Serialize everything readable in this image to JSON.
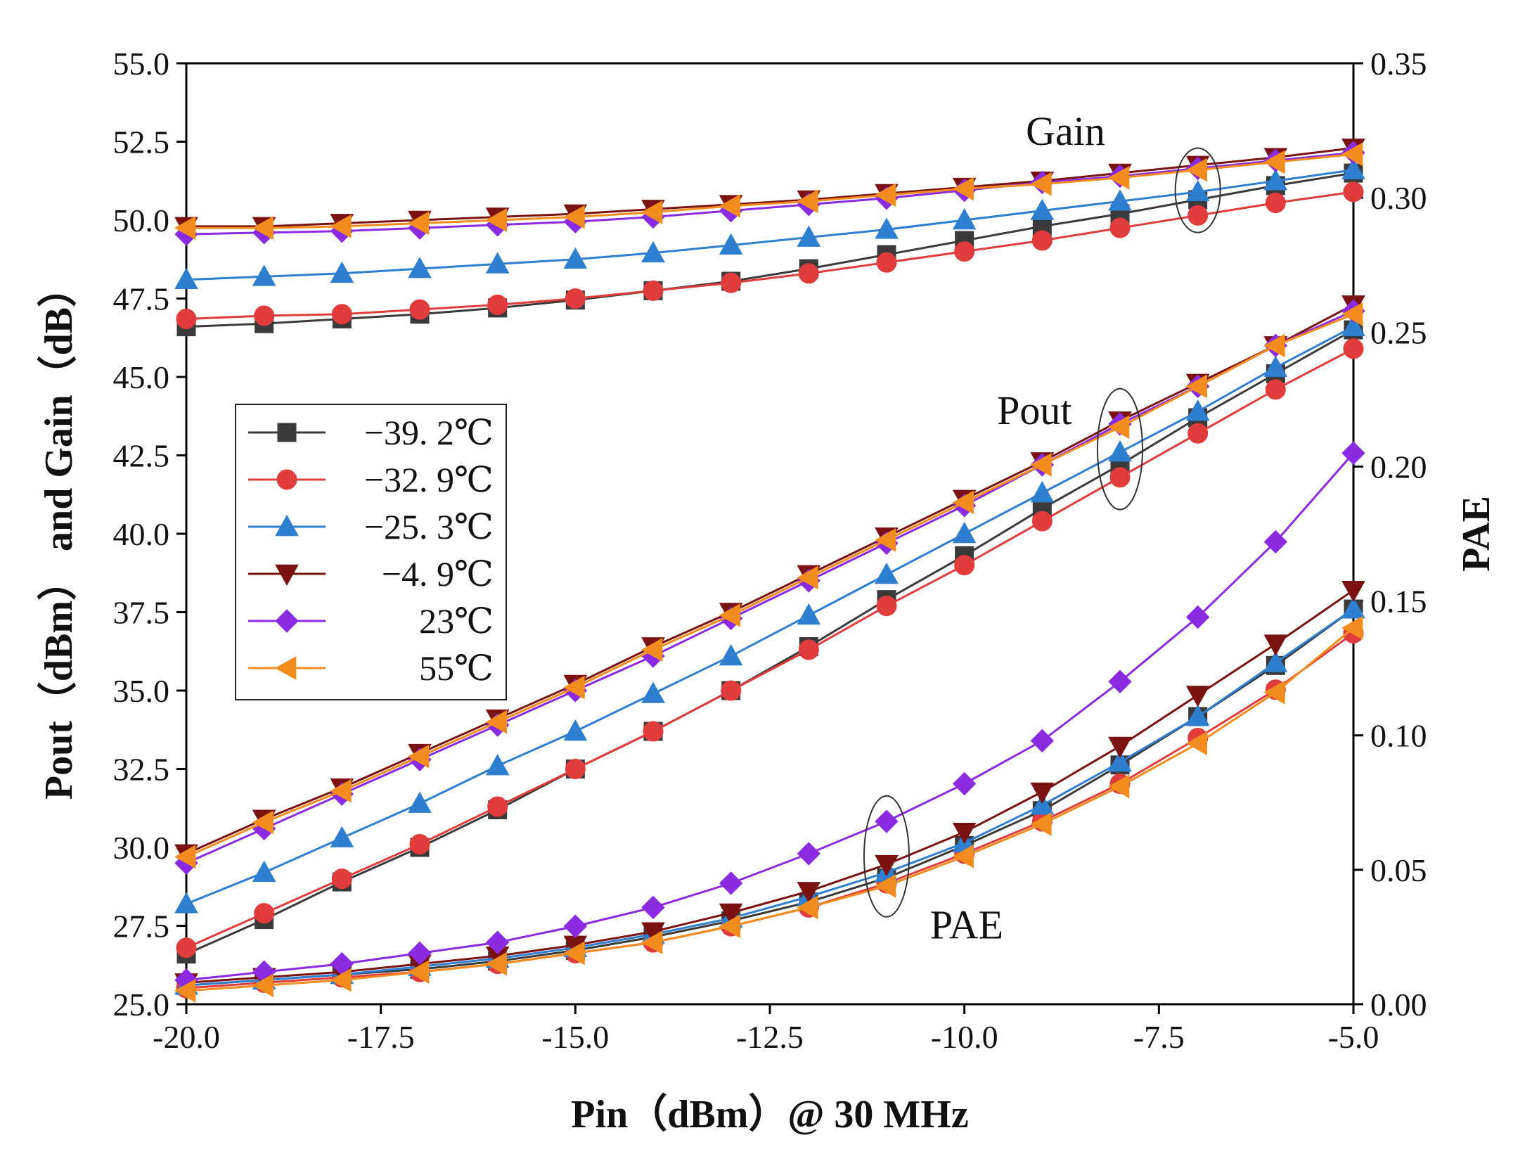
{
  "chart_data": {
    "type": "line",
    "xlabel": "Pin（dBm）@ 30 MHz",
    "ylabel_left": "Pout（dBm） and Gain（dB）",
    "ylabel_right": "PAE",
    "xlim": [
      -20.0,
      -5.0
    ],
    "ylim_left": [
      25.0,
      55.0
    ],
    "ylim_right": [
      0.0,
      0.35
    ],
    "x_ticks": [
      "-20.0",
      "-17.5",
      "-15.0",
      "-12.5",
      "-10.0",
      "-7.5",
      "-5.0"
    ],
    "y_left_ticks": [
      "25.0",
      "27.5",
      "30.0",
      "32.5",
      "35.0",
      "37.5",
      "40.0",
      "42.5",
      "45.0",
      "47.5",
      "50.0",
      "52.5",
      "55.0"
    ],
    "y_right_ticks": [
      "0.00",
      "0.05",
      "0.10",
      "0.15",
      "0.20",
      "0.25",
      "0.30",
      "0.35"
    ],
    "grid": false,
    "legend_position": "middle-left",
    "annotations": [
      "Gain",
      "Pout",
      "PAE"
    ],
    "x": [
      -20,
      -19,
      -18,
      -17,
      -16,
      -15,
      -14,
      -13,
      -12,
      -11,
      -10,
      -9,
      -8,
      -7,
      -6,
      -5
    ],
    "series": [
      {
        "name": "−39. 2℃",
        "color": "#3a3a3a",
        "marker": "square",
        "gain": [
          46.6,
          46.7,
          46.85,
          47.0,
          47.2,
          47.45,
          47.75,
          48.05,
          48.45,
          48.9,
          49.35,
          49.8,
          50.2,
          50.65,
          51.1,
          51.5
        ],
        "pout": [
          26.6,
          27.7,
          28.9,
          30.0,
          31.2,
          32.5,
          33.7,
          35.0,
          36.4,
          37.9,
          39.3,
          40.8,
          42.2,
          43.7,
          45.1,
          46.5
        ],
        "pae": [
          0.007,
          0.009,
          0.011,
          0.013,
          0.016,
          0.02,
          0.025,
          0.031,
          0.038,
          0.047,
          0.059,
          0.072,
          0.089,
          0.107,
          0.126,
          0.147
        ]
      },
      {
        "name": "−32. 9℃",
        "color": "#e03c3c",
        "marker": "circle",
        "gain": [
          46.85,
          46.95,
          47.0,
          47.15,
          47.3,
          47.5,
          47.75,
          48.0,
          48.3,
          48.65,
          49.0,
          49.35,
          49.75,
          50.15,
          50.55,
          50.9
        ],
        "pout": [
          26.8,
          27.9,
          29.0,
          30.1,
          31.3,
          32.5,
          33.7,
          35.0,
          36.3,
          37.7,
          39.0,
          40.4,
          41.8,
          43.2,
          44.6,
          45.9
        ],
        "pae": [
          0.006,
          0.008,
          0.01,
          0.012,
          0.015,
          0.019,
          0.023,
          0.029,
          0.036,
          0.045,
          0.056,
          0.068,
          0.082,
          0.099,
          0.117,
          0.138
        ]
      },
      {
        "name": "−25. 3℃",
        "color": "#2f7fd1",
        "marker": "triangle-up",
        "gain": [
          48.1,
          48.2,
          48.3,
          48.45,
          48.6,
          48.75,
          48.95,
          49.2,
          49.45,
          49.7,
          50.0,
          50.3,
          50.6,
          50.9,
          51.25,
          51.6
        ],
        "pout": [
          28.2,
          29.2,
          30.3,
          31.4,
          32.6,
          33.7,
          34.9,
          36.1,
          37.4,
          38.7,
          40.0,
          41.3,
          42.6,
          43.9,
          45.3,
          46.6
        ],
        "pae": [
          0.007,
          0.009,
          0.011,
          0.014,
          0.017,
          0.021,
          0.026,
          0.032,
          0.04,
          0.049,
          0.06,
          0.074,
          0.09,
          0.107,
          0.127,
          0.147
        ]
      },
      {
        "name": "−4. 9℃",
        "color": "#7a1212",
        "marker": "triangle-down",
        "gain": [
          49.8,
          49.8,
          49.9,
          50.0,
          50.1,
          50.2,
          50.35,
          50.5,
          50.65,
          50.85,
          51.05,
          51.25,
          51.5,
          51.75,
          52.0,
          52.3
        ],
        "pout": [
          29.8,
          30.9,
          31.9,
          33.0,
          34.1,
          35.2,
          36.4,
          37.5,
          38.7,
          39.9,
          41.1,
          42.3,
          43.6,
          44.8,
          46.0,
          47.3
        ],
        "pae": [
          0.008,
          0.01,
          0.012,
          0.015,
          0.018,
          0.022,
          0.027,
          0.034,
          0.042,
          0.052,
          0.064,
          0.079,
          0.096,
          0.115,
          0.134,
          0.154
        ]
      },
      {
        "name": "23℃",
        "color": "#8a2be2",
        "marker": "diamond",
        "gain": [
          49.55,
          49.6,
          49.65,
          49.75,
          49.85,
          49.95,
          50.1,
          50.3,
          50.5,
          50.7,
          50.95,
          51.2,
          51.4,
          51.65,
          51.9,
          52.15
        ],
        "pout": [
          29.5,
          30.6,
          31.7,
          32.8,
          33.9,
          35.0,
          36.1,
          37.3,
          38.5,
          39.7,
          40.9,
          42.2,
          43.5,
          44.7,
          46.0,
          47.1
        ],
        "pae": [
          0.009,
          0.012,
          0.015,
          0.019,
          0.023,
          0.029,
          0.036,
          0.045,
          0.056,
          0.068,
          0.082,
          0.098,
          0.12,
          0.144,
          0.172,
          0.205
        ]
      },
      {
        "name": "55℃",
        "color": "#f28c1e",
        "marker": "triangle-left",
        "gain": [
          49.75,
          49.75,
          49.8,
          49.9,
          50.0,
          50.1,
          50.25,
          50.45,
          50.6,
          50.8,
          51.0,
          51.15,
          51.35,
          51.6,
          51.85,
          52.1
        ],
        "pout": [
          29.7,
          30.8,
          31.8,
          32.9,
          34.0,
          35.1,
          36.3,
          37.4,
          38.6,
          39.8,
          41.0,
          42.2,
          43.4,
          44.7,
          46.0,
          47.0
        ],
        "pae": [
          0.005,
          0.007,
          0.009,
          0.012,
          0.015,
          0.019,
          0.023,
          0.029,
          0.036,
          0.044,
          0.055,
          0.067,
          0.081,
          0.097,
          0.116,
          0.14
        ]
      }
    ]
  }
}
